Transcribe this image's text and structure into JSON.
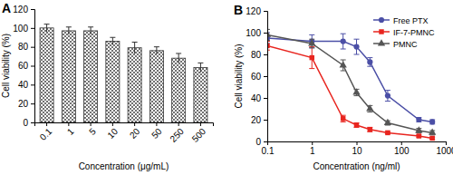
{
  "chart_data": [
    {
      "type": "bar",
      "title": "A",
      "categories": [
        "0.1",
        "1",
        "5",
        "10",
        "20",
        "50",
        "250",
        "500"
      ],
      "values": [
        100,
        97,
        97,
        86,
        79,
        76,
        68,
        58
      ],
      "errors": [
        4,
        4,
        4,
        4,
        6,
        4,
        5,
        5
      ],
      "color": "#333333",
      "ylim": [
        0,
        120
      ],
      "yticks": [
        0,
        20,
        40,
        60,
        80,
        100,
        120
      ],
      "x_label": "Concentration (μg/mL)",
      "y_label": "Cell viability (%)"
    },
    {
      "type": "line",
      "title": "B",
      "log": "x",
      "x": [
        0.1,
        1,
        5,
        10,
        20,
        50,
        250,
        500
      ],
      "xlim": [
        0.1,
        1000
      ],
      "xticks": [
        0.1,
        1,
        10,
        100,
        1000
      ],
      "ylim": [
        0,
        120
      ],
      "yticks": [
        0,
        20,
        40,
        60,
        80,
        100,
        120
      ],
      "x_label": "Concentration (ng/ml)",
      "y_label": "Cell viability (%)",
      "legend": "upper right",
      "series": [
        {
          "name": "Free PTX",
          "color": "#4b4fa6",
          "marker": "circle",
          "values": [
            95,
            92,
            92,
            87,
            73,
            42,
            20,
            18
          ],
          "errors": [
            5,
            6,
            7,
            7,
            4,
            5,
            2,
            2
          ]
        },
        {
          "name": "IF-7-PMNC",
          "color": "#e8251f",
          "marker": "square",
          "values": [
            88,
            77,
            21,
            15,
            11,
            8,
            5,
            3
          ],
          "errors": [
            4,
            10,
            3,
            2,
            2,
            1,
            1,
            1
          ]
        },
        {
          "name": "PMNC",
          "color": "#555555",
          "marker": "triangle",
          "values": [
            98,
            90,
            70,
            45,
            30,
            17,
            10,
            8
          ],
          "errors": [
            5,
            4,
            5,
            3,
            3,
            2,
            2,
            2
          ]
        }
      ]
    }
  ]
}
